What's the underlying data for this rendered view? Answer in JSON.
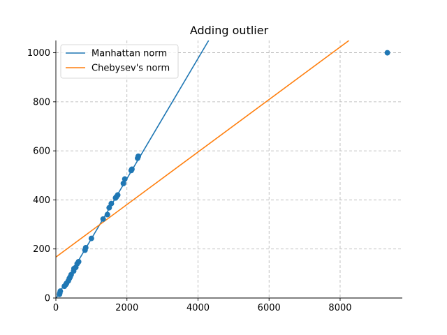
{
  "chart_data": {
    "type": "scatter",
    "title": "Adding outlier",
    "xlabel": "",
    "ylabel": "",
    "xlim": [
      0,
      9750
    ],
    "ylim": [
      0,
      1050
    ],
    "x_ticks": [
      0,
      2000,
      4000,
      6000,
      8000
    ],
    "y_ticks": [
      0,
      200,
      400,
      600,
      800,
      1000
    ],
    "x_tick_labels": [
      "0",
      "2000",
      "4000",
      "6000",
      "8000"
    ],
    "y_tick_labels": [
      "0",
      "200",
      "400",
      "600",
      "800",
      "1000"
    ],
    "grid": true,
    "legend_position": "top-left",
    "points": {
      "name": "data",
      "color": "#1f77b4",
      "x": [
        100,
        110,
        125,
        240,
        280,
        300,
        350,
        380,
        400,
        430,
        500,
        510,
        560,
        600,
        640,
        820,
        840,
        1000,
        1330,
        1450,
        1500,
        1560,
        1680,
        1700,
        1740,
        1900,
        1940,
        2120,
        2140,
        2300,
        2320,
        9330
      ],
      "y": [
        15,
        20,
        28,
        48,
        55,
        60,
        70,
        80,
        85,
        95,
        110,
        120,
        125,
        140,
        148,
        195,
        205,
        243,
        322,
        340,
        368,
        385,
        408,
        412,
        420,
        467,
        485,
        520,
        525,
        570,
        578,
        1000
      ]
    },
    "series": [
      {
        "name": "Manhattan norm",
        "color": "#1f77b4",
        "x": [
          0,
          4300
        ],
        "y": [
          -3,
          1050
        ]
      },
      {
        "name": "Chebysev's norm",
        "color": "#ff7f0e",
        "x": [
          0,
          8250
        ],
        "y": [
          167,
          1050
        ]
      }
    ]
  }
}
